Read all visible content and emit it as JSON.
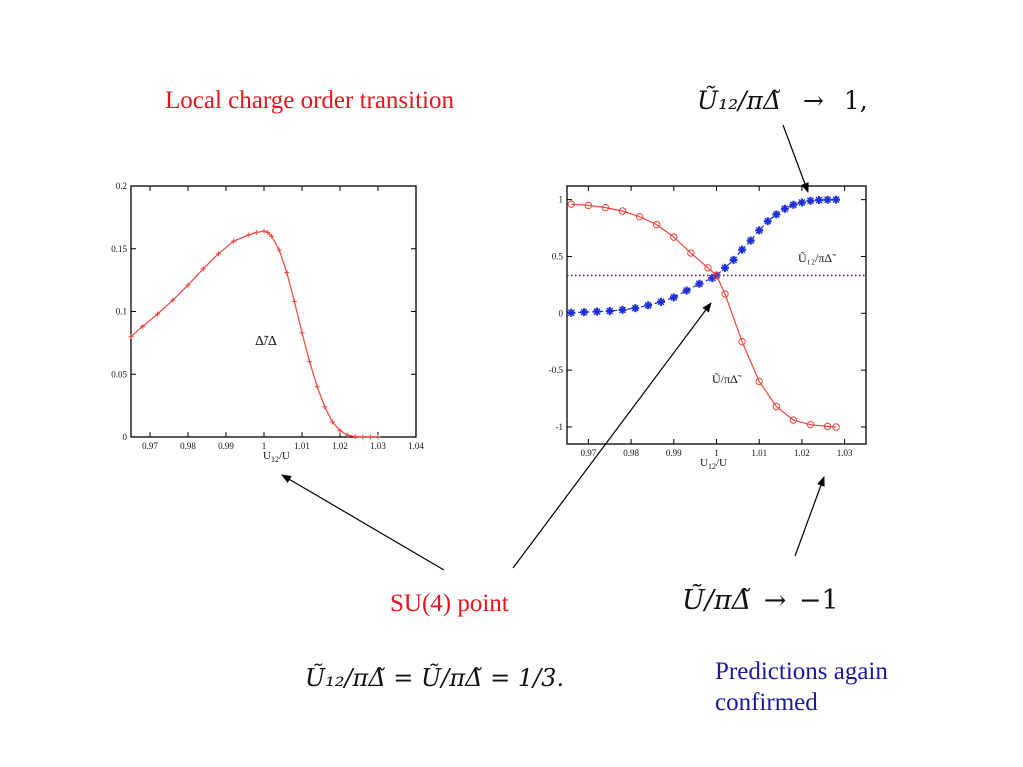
{
  "titles": {
    "local_charge": "Local charge order  transition",
    "su4_point": "SU(4) point",
    "predictions": "Predictions again confirmed"
  },
  "formulas": {
    "u12_limit_lhs": "Ũ₁₂/πΔ̃",
    "u12_limit_arrow": "→",
    "u12_limit_rhs": "1,",
    "u_limit_lhs": "Ũ/πΔ̃",
    "u_limit_arrow": "→",
    "u_limit_rhs": "−1",
    "su4_equation": "Ũ₁₂/πΔ̃ = Ũ/πΔ̃ = 1/3."
  },
  "colors": {
    "title_red": "#e8131b",
    "text_blue": "#1a1a9c",
    "curve_red": "#f0443c",
    "curve_blue": "#1f2fd6",
    "dotted_purple": "#6a0f58"
  },
  "chart_data": [
    {
      "type": "line",
      "title": "",
      "xlabel": "U12/U",
      "ylabel": "",
      "xlim": [
        0.965,
        1.04
      ],
      "ylim": [
        0,
        0.2
      ],
      "x_ticks": [
        "0.97",
        "0.98",
        "0.99",
        "1",
        "1.01",
        "1.02",
        "1.03",
        "1.04"
      ],
      "y_ticks": [
        "0",
        "0.05",
        "0.1",
        "0.15",
        "0.2"
      ],
      "grid": false,
      "annotation": "Δ̃/Δ",
      "series": [
        {
          "name": "Δ̃/Δ",
          "color": "#f0443c",
          "marker": "plus",
          "x": [
            0.965,
            0.968,
            0.972,
            0.976,
            0.98,
            0.984,
            0.988,
            0.992,
            0.996,
            0.998,
            1.0,
            1.001,
            1.002,
            1.004,
            1.006,
            1.008,
            1.01,
            1.012,
            1.014,
            1.016,
            1.018,
            1.02,
            1.022,
            1.024,
            1.026,
            1.028,
            1.03
          ],
          "y": [
            0.08,
            0.088,
            0.098,
            0.109,
            0.121,
            0.134,
            0.146,
            0.156,
            0.161,
            0.163,
            0.164,
            0.163,
            0.16,
            0.149,
            0.131,
            0.108,
            0.083,
            0.06,
            0.04,
            0.024,
            0.012,
            0.005,
            0.0015,
            0.0003,
            0.0,
            0.0,
            0.0
          ]
        }
      ]
    },
    {
      "type": "line",
      "title": "",
      "xlabel": "U12/U",
      "ylabel": "",
      "xlim": [
        0.965,
        1.035
      ],
      "ylim": [
        -1.15,
        1.12
      ],
      "x_ticks": [
        "0.97",
        "0.98",
        "0.99",
        "1",
        "1.01",
        "1.02",
        "1.03"
      ],
      "y_ticks": [
        "-1",
        "-0.5",
        "0",
        "0.5",
        "1"
      ],
      "grid": false,
      "annotations": [
        "Ũ₁₂/πΔ̃",
        "Ũ/πΔ̃"
      ],
      "reference_line": {
        "y": 0.333,
        "style": "dotted",
        "color": "#6a0f58"
      },
      "series": [
        {
          "name": "Ũ₁₂/πΔ̃",
          "color": "#1f2fd6",
          "marker": "star",
          "x": [
            0.966,
            0.969,
            0.972,
            0.975,
            0.978,
            0.981,
            0.984,
            0.987,
            0.99,
            0.993,
            0.996,
            0.999,
            1.0,
            1.002,
            1.004,
            1.006,
            1.008,
            1.01,
            1.012,
            1.014,
            1.016,
            1.018,
            1.02,
            1.022,
            1.024,
            1.026,
            1.028
          ],
          "y": [
            0.005,
            0.01,
            0.015,
            0.02,
            0.03,
            0.045,
            0.07,
            0.1,
            0.14,
            0.2,
            0.26,
            0.31,
            0.333,
            0.4,
            0.47,
            0.56,
            0.64,
            0.73,
            0.81,
            0.87,
            0.92,
            0.955,
            0.975,
            0.99,
            0.996,
            0.999,
            1.0
          ]
        },
        {
          "name": "Ũ/πΔ̃",
          "color": "#f0443c",
          "marker": "circle",
          "x": [
            0.966,
            0.97,
            0.974,
            0.978,
            0.982,
            0.986,
            0.99,
            0.994,
            0.998,
            1.0,
            1.002,
            1.006,
            1.01,
            1.014,
            1.018,
            1.022,
            1.026,
            1.028
          ],
          "y": [
            0.96,
            0.95,
            0.93,
            0.9,
            0.85,
            0.78,
            0.67,
            0.53,
            0.4,
            0.333,
            0.17,
            -0.25,
            -0.6,
            -0.82,
            -0.94,
            -0.98,
            -0.995,
            -1.0
          ]
        }
      ]
    }
  ]
}
